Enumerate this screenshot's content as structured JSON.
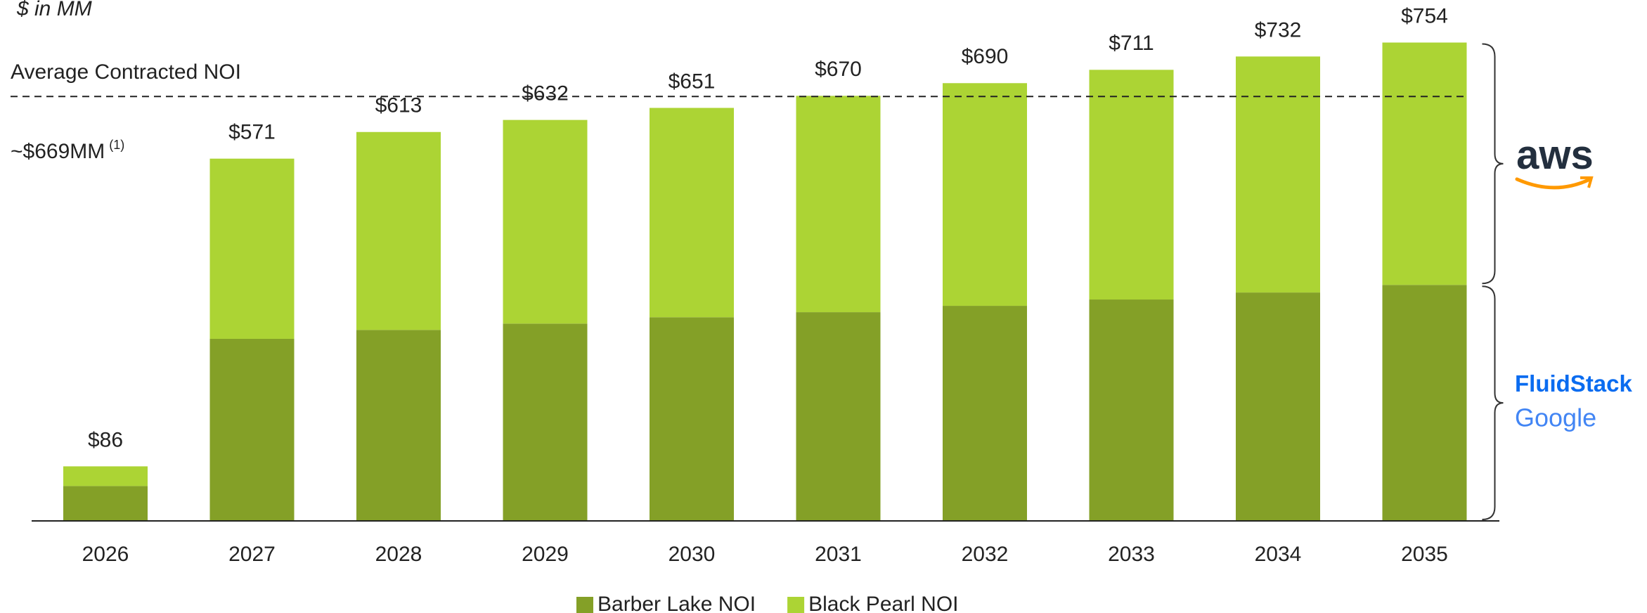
{
  "chart_data": {
    "type": "stacked_bar",
    "subtitle": "$ in MM",
    "categories": [
      "2026",
      "2027",
      "2028",
      "2029",
      "2030",
      "2031",
      "2032",
      "2033",
      "2034",
      "2035"
    ],
    "series": [
      {
        "name": "Barber Lake NOI",
        "color": "#84a027",
        "values": [
          55,
          287,
          301,
          311,
          321,
          329,
          339,
          349,
          360,
          372
        ]
      },
      {
        "name": "Black Pearl NOI",
        "color": "#acd434",
        "values": [
          31,
          284,
          312,
          321,
          330,
          341,
          351,
          362,
          372,
          382
        ]
      }
    ],
    "totals": [
      86,
      571,
      613,
      632,
      651,
      670,
      690,
      711,
      732,
      754
    ],
    "total_labels": [
      "$86",
      "$571",
      "$613",
      "$632",
      "$651",
      "$670",
      "$690",
      "$711",
      "$732",
      "$754"
    ],
    "ylim": [
      0,
      800
    ],
    "reference_line": {
      "value": 669,
      "label": "Average Contracted NOI",
      "sublabel": "~$669MM",
      "note": "(1)"
    },
    "annotations": [
      {
        "series": 1,
        "texts": [
          "aws"
        ]
      },
      {
        "series": 0,
        "texts": [
          "FluidStack",
          "Google"
        ]
      }
    ]
  }
}
